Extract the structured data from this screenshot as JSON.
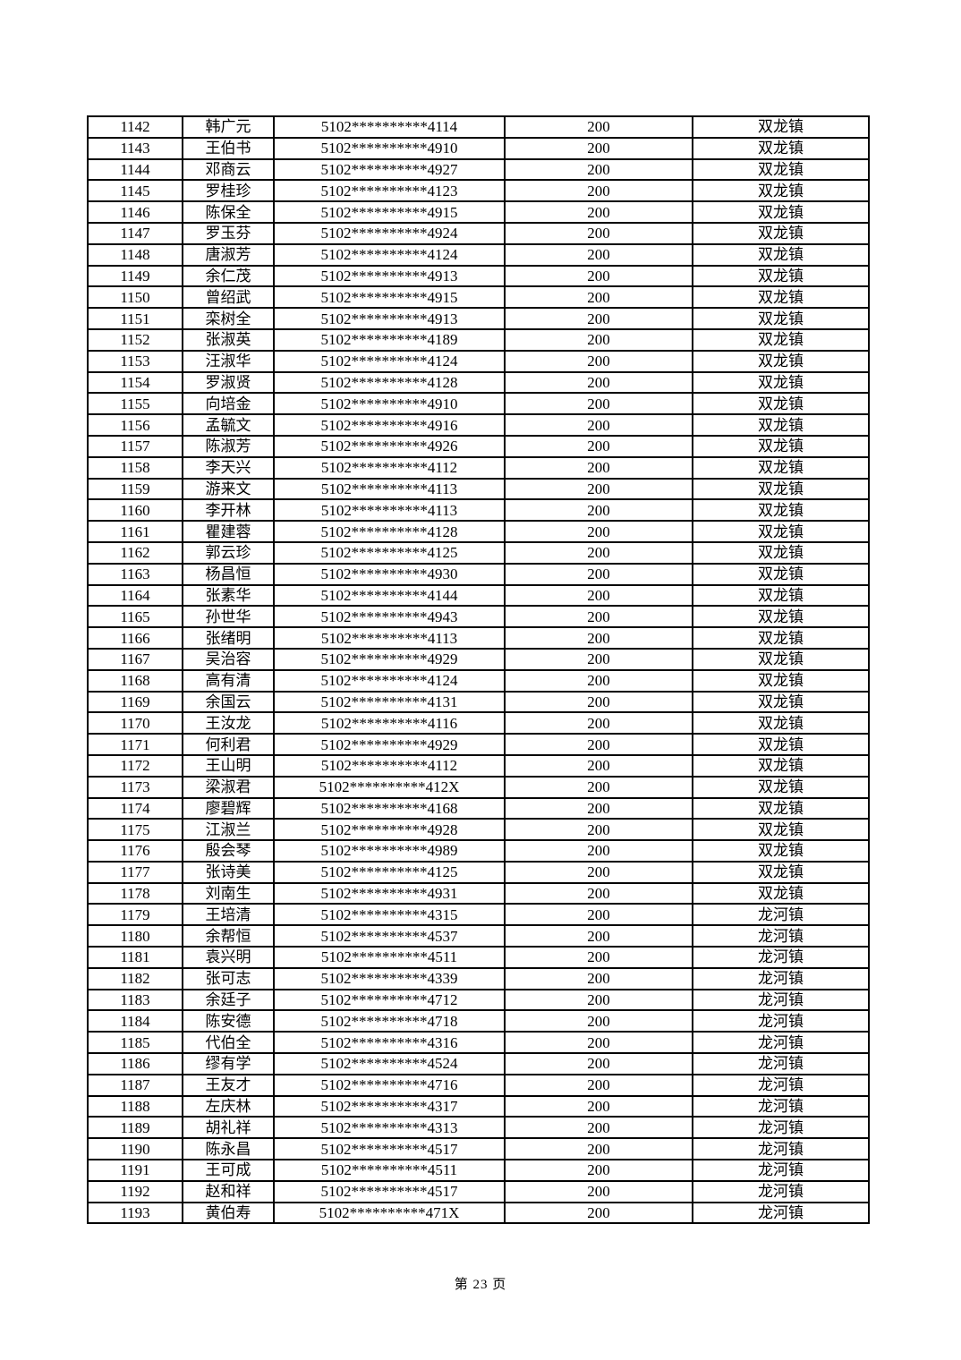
{
  "footer": {
    "label": "第 23 页"
  },
  "table": {
    "rows": [
      [
        "1142",
        "韩广元",
        "5102**********4114",
        "200",
        "双龙镇"
      ],
      [
        "1143",
        "王伯书",
        "5102**********4910",
        "200",
        "双龙镇"
      ],
      [
        "1144",
        "邓商云",
        "5102**********4927",
        "200",
        "双龙镇"
      ],
      [
        "1145",
        "罗桂珍",
        "5102**********4123",
        "200",
        "双龙镇"
      ],
      [
        "1146",
        "陈保全",
        "5102**********4915",
        "200",
        "双龙镇"
      ],
      [
        "1147",
        "罗玉芬",
        "5102**********4924",
        "200",
        "双龙镇"
      ],
      [
        "1148",
        "唐淑芳",
        "5102**********4124",
        "200",
        "双龙镇"
      ],
      [
        "1149",
        "余仁茂",
        "5102**********4913",
        "200",
        "双龙镇"
      ],
      [
        "1150",
        "曾绍武",
        "5102**********4915",
        "200",
        "双龙镇"
      ],
      [
        "1151",
        "栾树全",
        "5102**********4913",
        "200",
        "双龙镇"
      ],
      [
        "1152",
        "张淑英",
        "5102**********4189",
        "200",
        "双龙镇"
      ],
      [
        "1153",
        "汪淑华",
        "5102**********4124",
        "200",
        "双龙镇"
      ],
      [
        "1154",
        "罗淑贤",
        "5102**********4128",
        "200",
        "双龙镇"
      ],
      [
        "1155",
        "向培金",
        "5102**********4910",
        "200",
        "双龙镇"
      ],
      [
        "1156",
        "孟毓文",
        "5102**********4916",
        "200",
        "双龙镇"
      ],
      [
        "1157",
        "陈淑芳",
        "5102**********4926",
        "200",
        "双龙镇"
      ],
      [
        "1158",
        "李天兴",
        "5102**********4112",
        "200",
        "双龙镇"
      ],
      [
        "1159",
        "游来文",
        "5102**********4113",
        "200",
        "双龙镇"
      ],
      [
        "1160",
        "李开林",
        "5102**********4113",
        "200",
        "双龙镇"
      ],
      [
        "1161",
        "瞿建蓉",
        "5102**********4128",
        "200",
        "双龙镇"
      ],
      [
        "1162",
        "郭云珍",
        "5102**********4125",
        "200",
        "双龙镇"
      ],
      [
        "1163",
        "杨昌恒",
        "5102**********4930",
        "200",
        "双龙镇"
      ],
      [
        "1164",
        "张素华",
        "5102**********4144",
        "200",
        "双龙镇"
      ],
      [
        "1165",
        "孙世华",
        "5102**********4943",
        "200",
        "双龙镇"
      ],
      [
        "1166",
        "张绪明",
        "5102**********4113",
        "200",
        "双龙镇"
      ],
      [
        "1167",
        "吴治容",
        "5102**********4929",
        "200",
        "双龙镇"
      ],
      [
        "1168",
        "高有清",
        "5102**********4124",
        "200",
        "双龙镇"
      ],
      [
        "1169",
        "余国云",
        "5102**********4131",
        "200",
        "双龙镇"
      ],
      [
        "1170",
        "王汝龙",
        "5102**********4116",
        "200",
        "双龙镇"
      ],
      [
        "1171",
        "何利君",
        "5102**********4929",
        "200",
        "双龙镇"
      ],
      [
        "1172",
        "王山明",
        "5102**********4112",
        "200",
        "双龙镇"
      ],
      [
        "1173",
        "梁淑君",
        "5102**********412X",
        "200",
        "双龙镇"
      ],
      [
        "1174",
        "廖碧辉",
        "5102**********4168",
        "200",
        "双龙镇"
      ],
      [
        "1175",
        "江淑兰",
        "5102**********4928",
        "200",
        "双龙镇"
      ],
      [
        "1176",
        "殷会琴",
        "5102**********4989",
        "200",
        "双龙镇"
      ],
      [
        "1177",
        "张诗美",
        "5102**********4125",
        "200",
        "双龙镇"
      ],
      [
        "1178",
        "刘南生",
        "5102**********4931",
        "200",
        "双龙镇"
      ],
      [
        "1179",
        "王培清",
        "5102**********4315",
        "200",
        "龙河镇"
      ],
      [
        "1180",
        "余帮恒",
        "5102**********4537",
        "200",
        "龙河镇"
      ],
      [
        "1181",
        "袁兴明",
        "5102**********4511",
        "200",
        "龙河镇"
      ],
      [
        "1182",
        "张可志",
        "5102**********4339",
        "200",
        "龙河镇"
      ],
      [
        "1183",
        "余廷子",
        "5102**********4712",
        "200",
        "龙河镇"
      ],
      [
        "1184",
        "陈安德",
        "5102**********4718",
        "200",
        "龙河镇"
      ],
      [
        "1185",
        "代伯全",
        "5102**********4316",
        "200",
        "龙河镇"
      ],
      [
        "1186",
        "缪有学",
        "5102**********4524",
        "200",
        "龙河镇"
      ],
      [
        "1187",
        "王友才",
        "5102**********4716",
        "200",
        "龙河镇"
      ],
      [
        "1188",
        "左庆林",
        "5102**********4317",
        "200",
        "龙河镇"
      ],
      [
        "1189",
        "胡礼祥",
        "5102**********4313",
        "200",
        "龙河镇"
      ],
      [
        "1190",
        "陈永昌",
        "5102**********4517",
        "200",
        "龙河镇"
      ],
      [
        "1191",
        "王可成",
        "5102**********4511",
        "200",
        "龙河镇"
      ],
      [
        "1192",
        "赵和祥",
        "5102**********4517",
        "200",
        "龙河镇"
      ],
      [
        "1193",
        "黄伯寿",
        "5102**********471X",
        "200",
        "龙河镇"
      ]
    ]
  }
}
